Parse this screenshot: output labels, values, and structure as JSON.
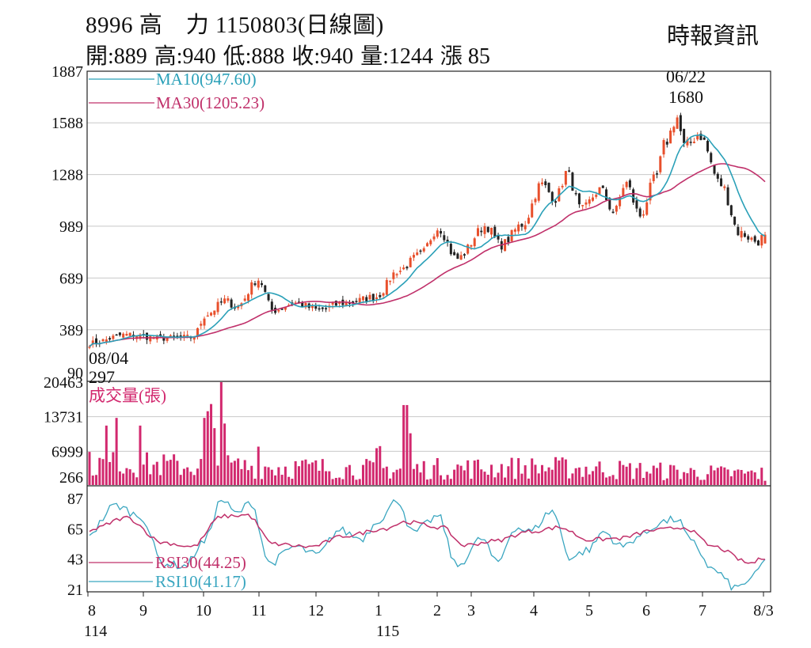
{
  "header": {
    "title": "8996 高　力 1150803(日線圖)",
    "source": "時報資訊",
    "ohlc": [
      {
        "label": "開",
        "value": "889"
      },
      {
        "label": "高",
        "value": "940"
      },
      {
        "label": "低",
        "value": "888"
      },
      {
        "label": "收",
        "value": "940"
      },
      {
        "label": "量",
        "value": "1244"
      },
      {
        "label": "漲",
        "value": "85"
      }
    ]
  },
  "colors": {
    "up": "#e8502c",
    "down": "#222222",
    "ma10": "#2aa0b8",
    "ma30": "#c0306a",
    "volume": "#d2286e",
    "rsi10": "#3aa6c0",
    "rsi30": "#c0306a",
    "grid": "#c8c8c8"
  },
  "chart_data": [
    {
      "type": "candlestick",
      "title": "",
      "y_ticks": [
        "1887",
        "1588",
        "1288",
        "989",
        "689",
        "389",
        "90"
      ],
      "ylim": [
        90,
        1887
      ],
      "legend": [
        {
          "name": "MA10",
          "value": "947.60",
          "label": "MA10(947.60)"
        },
        {
          "name": "MA30",
          "value": "1205.23",
          "label": "MA30(1205.23)"
        }
      ],
      "annotations": {
        "high": {
          "date": "06/22",
          "value": "1680"
        },
        "low": {
          "date": "08/04",
          "value": "297"
        }
      },
      "anchors": [
        {
          "m": 0,
          "v": 310
        },
        {
          "m": 0.5,
          "v": 360
        },
        {
          "m": 1.0,
          "v": 340
        },
        {
          "m": 1.4,
          "v": 345
        },
        {
          "m": 1.6,
          "v": 480
        },
        {
          "m": 1.85,
          "v": 560
        },
        {
          "m": 2.0,
          "v": 520
        },
        {
          "m": 2.3,
          "v": 680
        },
        {
          "m": 2.5,
          "v": 500
        },
        {
          "m": 2.8,
          "v": 545
        },
        {
          "m": 3.1,
          "v": 505
        },
        {
          "m": 3.5,
          "v": 545
        },
        {
          "m": 3.9,
          "v": 580
        },
        {
          "m": 4.2,
          "v": 730
        },
        {
          "m": 4.5,
          "v": 820
        },
        {
          "m": 4.75,
          "v": 980
        },
        {
          "m": 5.0,
          "v": 800
        },
        {
          "m": 5.4,
          "v": 990
        },
        {
          "m": 5.6,
          "v": 880
        },
        {
          "m": 5.9,
          "v": 1000
        },
        {
          "m": 6.15,
          "v": 1230
        },
        {
          "m": 6.35,
          "v": 1150
        },
        {
          "m": 6.5,
          "v": 1300
        },
        {
          "m": 6.7,
          "v": 1080
        },
        {
          "m": 6.95,
          "v": 1200
        },
        {
          "m": 7.15,
          "v": 1070
        },
        {
          "m": 7.3,
          "v": 1240
        },
        {
          "m": 7.5,
          "v": 1050
        },
        {
          "m": 7.7,
          "v": 1260
        },
        {
          "m": 7.85,
          "v": 1480
        },
        {
          "m": 8.0,
          "v": 1620
        },
        {
          "m": 8.1,
          "v": 1450
        },
        {
          "m": 8.3,
          "v": 1520
        },
        {
          "m": 8.6,
          "v": 1230
        },
        {
          "m": 8.85,
          "v": 950
        },
        {
          "m": 9.1,
          "v": 900
        },
        {
          "m": 9.2,
          "v": 940
        }
      ],
      "last": {
        "open": 889,
        "high": 940,
        "low": 888,
        "close": 940
      },
      "ma_end": {
        "ma10": 947.6,
        "ma30": 1205.23
      }
    },
    {
      "type": "bar",
      "title": "成交量(張)",
      "y_ticks": [
        "20463",
        "13731",
        "6999",
        "266"
      ],
      "ylim": [
        266,
        20463
      ],
      "spikes": [
        {
          "m": 1.55,
          "v": 13500
        },
        {
          "m": 1.62,
          "v": 14800
        },
        {
          "m": 1.65,
          "v": 16200
        },
        {
          "m": 1.69,
          "v": 11500
        },
        {
          "m": 1.78,
          "v": 20463
        },
        {
          "m": 1.82,
          "v": 12400
        },
        {
          "m": 2.3,
          "v": 7900
        },
        {
          "m": 3.9,
          "v": 7600
        },
        {
          "m": 3.95,
          "v": 8000
        },
        {
          "m": 4.3,
          "v": 16000
        },
        {
          "m": 4.35,
          "v": 10500
        },
        {
          "m": 0.25,
          "v": 12000
        },
        {
          "m": 0.35,
          "v": 13500
        },
        {
          "m": 0.7,
          "v": 12000
        }
      ],
      "last": 1244
    },
    {
      "type": "line",
      "title": "",
      "y_ticks": [
        "87",
        "65",
        "43",
        "21"
      ],
      "ylim": [
        21,
        87
      ],
      "legend": [
        {
          "name": "RSI30",
          "value": "44.25",
          "label": "RSI30(44.25)"
        },
        {
          "name": "RSI10",
          "value": "41.17",
          "label": "RSI10(41.17)"
        }
      ],
      "rsi10_anchors": [
        {
          "m": 0,
          "v": 62
        },
        {
          "m": 0.35,
          "v": 82
        },
        {
          "m": 0.7,
          "v": 74
        },
        {
          "m": 1.0,
          "v": 40
        },
        {
          "m": 1.3,
          "v": 38
        },
        {
          "m": 1.55,
          "v": 55
        },
        {
          "m": 1.8,
          "v": 86
        },
        {
          "m": 2.0,
          "v": 76
        },
        {
          "m": 2.2,
          "v": 84
        },
        {
          "m": 2.45,
          "v": 40
        },
        {
          "m": 2.8,
          "v": 52
        },
        {
          "m": 3.1,
          "v": 46
        },
        {
          "m": 3.4,
          "v": 64
        },
        {
          "m": 3.7,
          "v": 58
        },
        {
          "m": 3.95,
          "v": 72
        },
        {
          "m": 4.2,
          "v": 86
        },
        {
          "m": 4.4,
          "v": 62
        },
        {
          "m": 4.75,
          "v": 74
        },
        {
          "m": 5.0,
          "v": 38
        },
        {
          "m": 5.35,
          "v": 58
        },
        {
          "m": 5.55,
          "v": 40
        },
        {
          "m": 5.8,
          "v": 66
        },
        {
          "m": 6.0,
          "v": 63
        },
        {
          "m": 6.3,
          "v": 78
        },
        {
          "m": 6.55,
          "v": 44
        },
        {
          "m": 6.8,
          "v": 50
        },
        {
          "m": 7.0,
          "v": 63
        },
        {
          "m": 7.25,
          "v": 52
        },
        {
          "m": 7.5,
          "v": 60
        },
        {
          "m": 7.8,
          "v": 70
        },
        {
          "m": 8.0,
          "v": 72
        },
        {
          "m": 8.2,
          "v": 55
        },
        {
          "m": 8.5,
          "v": 35
        },
        {
          "m": 8.8,
          "v": 22
        },
        {
          "m": 9.0,
          "v": 28
        },
        {
          "m": 9.2,
          "v": 41.17
        }
      ],
      "rsi30_anchors": [
        {
          "m": 0,
          "v": 64
        },
        {
          "m": 0.5,
          "v": 73
        },
        {
          "m": 1.0,
          "v": 55
        },
        {
          "m": 1.4,
          "v": 52
        },
        {
          "m": 1.8,
          "v": 74
        },
        {
          "m": 2.15,
          "v": 75
        },
        {
          "m": 2.5,
          "v": 54
        },
        {
          "m": 3.0,
          "v": 52
        },
        {
          "m": 3.5,
          "v": 60
        },
        {
          "m": 4.0,
          "v": 65
        },
        {
          "m": 4.3,
          "v": 70
        },
        {
          "m": 4.8,
          "v": 66
        },
        {
          "m": 5.1,
          "v": 53
        },
        {
          "m": 5.5,
          "v": 56
        },
        {
          "m": 6.0,
          "v": 63
        },
        {
          "m": 6.4,
          "v": 66
        },
        {
          "m": 6.8,
          "v": 57
        },
        {
          "m": 7.2,
          "v": 58
        },
        {
          "m": 7.7,
          "v": 64
        },
        {
          "m": 8.1,
          "v": 66
        },
        {
          "m": 8.5,
          "v": 52
        },
        {
          "m": 9.0,
          "v": 40
        },
        {
          "m": 9.2,
          "v": 44.25
        }
      ]
    }
  ],
  "x_axis": {
    "months": [
      {
        "label": "8",
        "m": 0
      },
      {
        "label": "9",
        "m": 1
      },
      {
        "label": "10",
        "m": 2
      },
      {
        "label": "11",
        "m": 3
      },
      {
        "label": "12",
        "m": 4
      },
      {
        "label": "1",
        "m": 5
      },
      {
        "label": "2",
        "m": 6
      },
      {
        "label": "3",
        "m": 6.6
      },
      {
        "label": "4",
        "m": 7.6
      },
      {
        "label": "5",
        "m": 8.5
      },
      {
        "label": "6",
        "m": 9.5
      },
      {
        "label": "7",
        "m": 10.5
      },
      {
        "label": "8/3",
        "m": 11.2
      }
    ],
    "years": [
      {
        "label": "114",
        "m": 0
      },
      {
        "label": "115",
        "m": 5
      }
    ]
  }
}
